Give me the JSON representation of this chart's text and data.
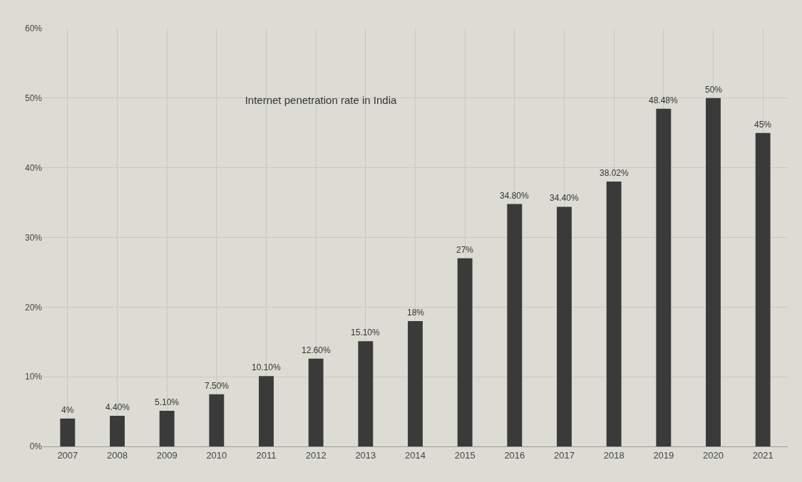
{
  "chart_data": {
    "type": "bar",
    "title": "Internet penetration rate in India",
    "categories": [
      "2007",
      "2008",
      "2009",
      "2010",
      "2011",
      "2012",
      "2013",
      "2014",
      "2015",
      "2016",
      "2017",
      "2018",
      "2019",
      "2020",
      "2021"
    ],
    "values": [
      4,
      4.4,
      5.1,
      7.5,
      10.1,
      12.6,
      15.1,
      18,
      27,
      34.8,
      34.4,
      38.02,
      48.48,
      50,
      45
    ],
    "value_labels": [
      "4%",
      "4.40%",
      "5.10%",
      "7.50%",
      "10.10%",
      "12.60%",
      "15.10%",
      "18%",
      "27%",
      "34.80%",
      "34.40%",
      "38.02%",
      "48.48%",
      "50%",
      "45%"
    ],
    "color": "#3a3a3a",
    "ylim": [
      0,
      60
    ],
    "yticks": [
      {
        "value": 0,
        "label": "0%"
      },
      {
        "value": 10,
        "label": "10%"
      },
      {
        "value": 20,
        "label": "20%"
      },
      {
        "value": 30,
        "label": "30%"
      },
      {
        "value": 40,
        "label": "40%"
      },
      {
        "value": 50,
        "label": "50%"
      },
      {
        "value": 60,
        "label": "60%"
      }
    ],
    "grid": true
  }
}
